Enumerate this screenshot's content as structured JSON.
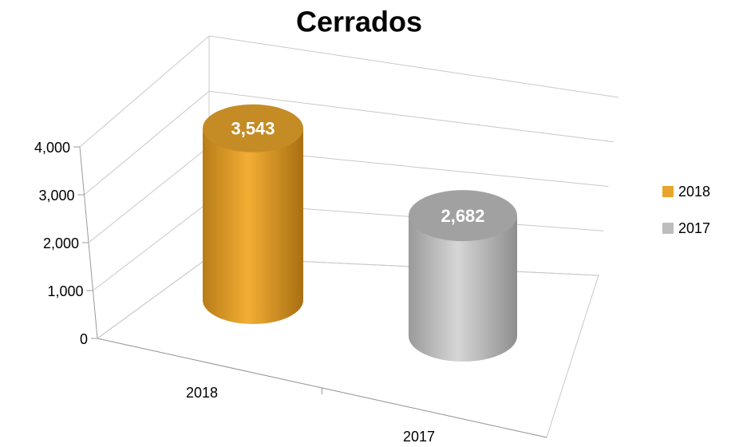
{
  "chart_data": {
    "type": "cylinder",
    "title": "Cerrados",
    "categories": [
      "2018",
      "2017"
    ],
    "series": [
      {
        "name": "2018",
        "color": "#e8a42c",
        "values": [
          3543,
          null
        ],
        "value_labels": [
          "3,543",
          null
        ]
      },
      {
        "name": "2017",
        "color": "#bdbdbd",
        "values": [
          null,
          2682
        ],
        "value_labels": [
          null,
          "2,682"
        ]
      }
    ],
    "ylim": [
      0,
      4000
    ],
    "yticks": [
      0,
      {
        "value": 1000,
        "label": "1,000"
      },
      {
        "value": 2000,
        "label": "2,000"
      },
      {
        "value": 3000,
        "label": "3,000"
      },
      {
        "value": 4000,
        "label": "4,000"
      }
    ],
    "grid": true,
    "legend": "right"
  }
}
